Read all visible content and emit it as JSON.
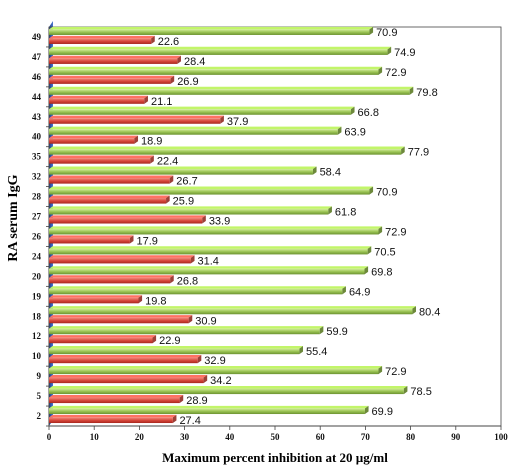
{
  "chart_data": {
    "type": "bar",
    "orientation": "horizontal",
    "categories": [
      "2",
      "5",
      "9",
      "10",
      "12",
      "18",
      "19",
      "20",
      "24",
      "26",
      "27",
      "28",
      "32",
      "35",
      "40",
      "43",
      "44",
      "46",
      "47",
      "49"
    ],
    "series": [
      {
        "color": "#e05a4f",
        "values": [
          27.4,
          28.9,
          34.2,
          32.9,
          22.9,
          30.9,
          19.8,
          26.8,
          31.4,
          17.9,
          33.9,
          25.9,
          26.7,
          22.4,
          18.9,
          37.9,
          21.1,
          26.9,
          28.4,
          22.6
        ]
      },
      {
        "color": "#9bc454",
        "values": [
          69.9,
          78.5,
          72.9,
          55.4,
          59.9,
          80.4,
          64.9,
          69.8,
          70.5,
          72.9,
          61.8,
          70.9,
          58.4,
          77.9,
          63.9,
          66.8,
          79.8,
          72.9,
          74.9,
          70.9
        ]
      }
    ],
    "xlabel": "Maximum  percent  inhibition  at  20 µg/ml",
    "ylabel": "RA serum IgG",
    "xlim": [
      0,
      100
    ],
    "xticks": [
      "0",
      "10",
      "20",
      "30",
      "40",
      "50",
      "60",
      "70",
      "80",
      "90",
      "100"
    ],
    "grid": false,
    "legend": "none"
  }
}
